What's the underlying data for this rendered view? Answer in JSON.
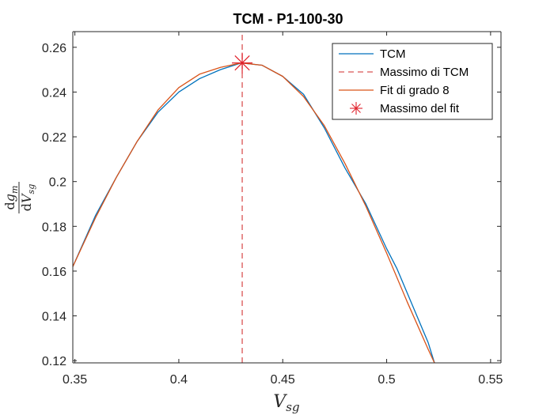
{
  "chart_data": {
    "type": "line",
    "title": "TCM - P1-100-30",
    "xlabel": {
      "main": "V",
      "sub": "sg"
    },
    "ylabel": {
      "num_d": "d",
      "num_main": "g",
      "num_sub": "m",
      "den_d": "d",
      "den_main": "V",
      "den_sub": "sg"
    },
    "xlim": [
      0.349,
      0.555
    ],
    "ylim": [
      0.119,
      0.267
    ],
    "xticks": [
      0.35,
      0.4,
      0.45,
      0.5,
      0.55
    ],
    "xtick_labels": [
      "0.35",
      "0.4",
      "0.45",
      "0.5",
      "0.55"
    ],
    "yticks": [
      0.12,
      0.14,
      0.16,
      0.18,
      0.2,
      0.22,
      0.24,
      0.26
    ],
    "ytick_labels": [
      "0.12",
      "0.14",
      "0.16",
      "0.18",
      "0.2",
      "0.22",
      "0.24",
      "0.26"
    ],
    "legend_position": "top-right",
    "series": [
      {
        "name": "TCM",
        "style": "solid",
        "color": "#0072BD",
        "x": [
          0.349,
          0.36,
          0.37,
          0.38,
          0.39,
          0.4,
          0.41,
          0.42,
          0.43,
          0.44,
          0.45,
          0.46,
          0.47,
          0.48,
          0.49,
          0.5,
          0.505,
          0.51,
          0.52,
          0.523
        ],
        "y": [
          0.162,
          0.185,
          0.202,
          0.218,
          0.231,
          0.24,
          0.246,
          0.25,
          0.253,
          0.252,
          0.247,
          0.239,
          0.224,
          0.206,
          0.19,
          0.17,
          0.161,
          0.15,
          0.128,
          0.119
        ]
      },
      {
        "name": "Massimo di TCM",
        "style": "dashed",
        "color": "#D95353",
        "x": [
          0.4305,
          0.4305
        ],
        "y": [
          0.119,
          0.267
        ]
      },
      {
        "name": "Fit di grado 8",
        "style": "solid",
        "color": "#D95319",
        "x": [
          0.349,
          0.36,
          0.37,
          0.38,
          0.39,
          0.4,
          0.41,
          0.42,
          0.43,
          0.44,
          0.45,
          0.46,
          0.47,
          0.48,
          0.49,
          0.5,
          0.51,
          0.52,
          0.523
        ],
        "y": [
          0.162,
          0.184,
          0.202,
          0.218,
          0.232,
          0.242,
          0.248,
          0.251,
          0.253,
          0.252,
          0.247,
          0.238,
          0.225,
          0.208,
          0.189,
          0.168,
          0.146,
          0.125,
          0.119
        ]
      },
      {
        "name": "Massimo del fit",
        "style": "marker",
        "marker": "asterisk",
        "color": "#E0202A",
        "x": [
          0.4305
        ],
        "y": [
          0.253
        ]
      }
    ]
  }
}
